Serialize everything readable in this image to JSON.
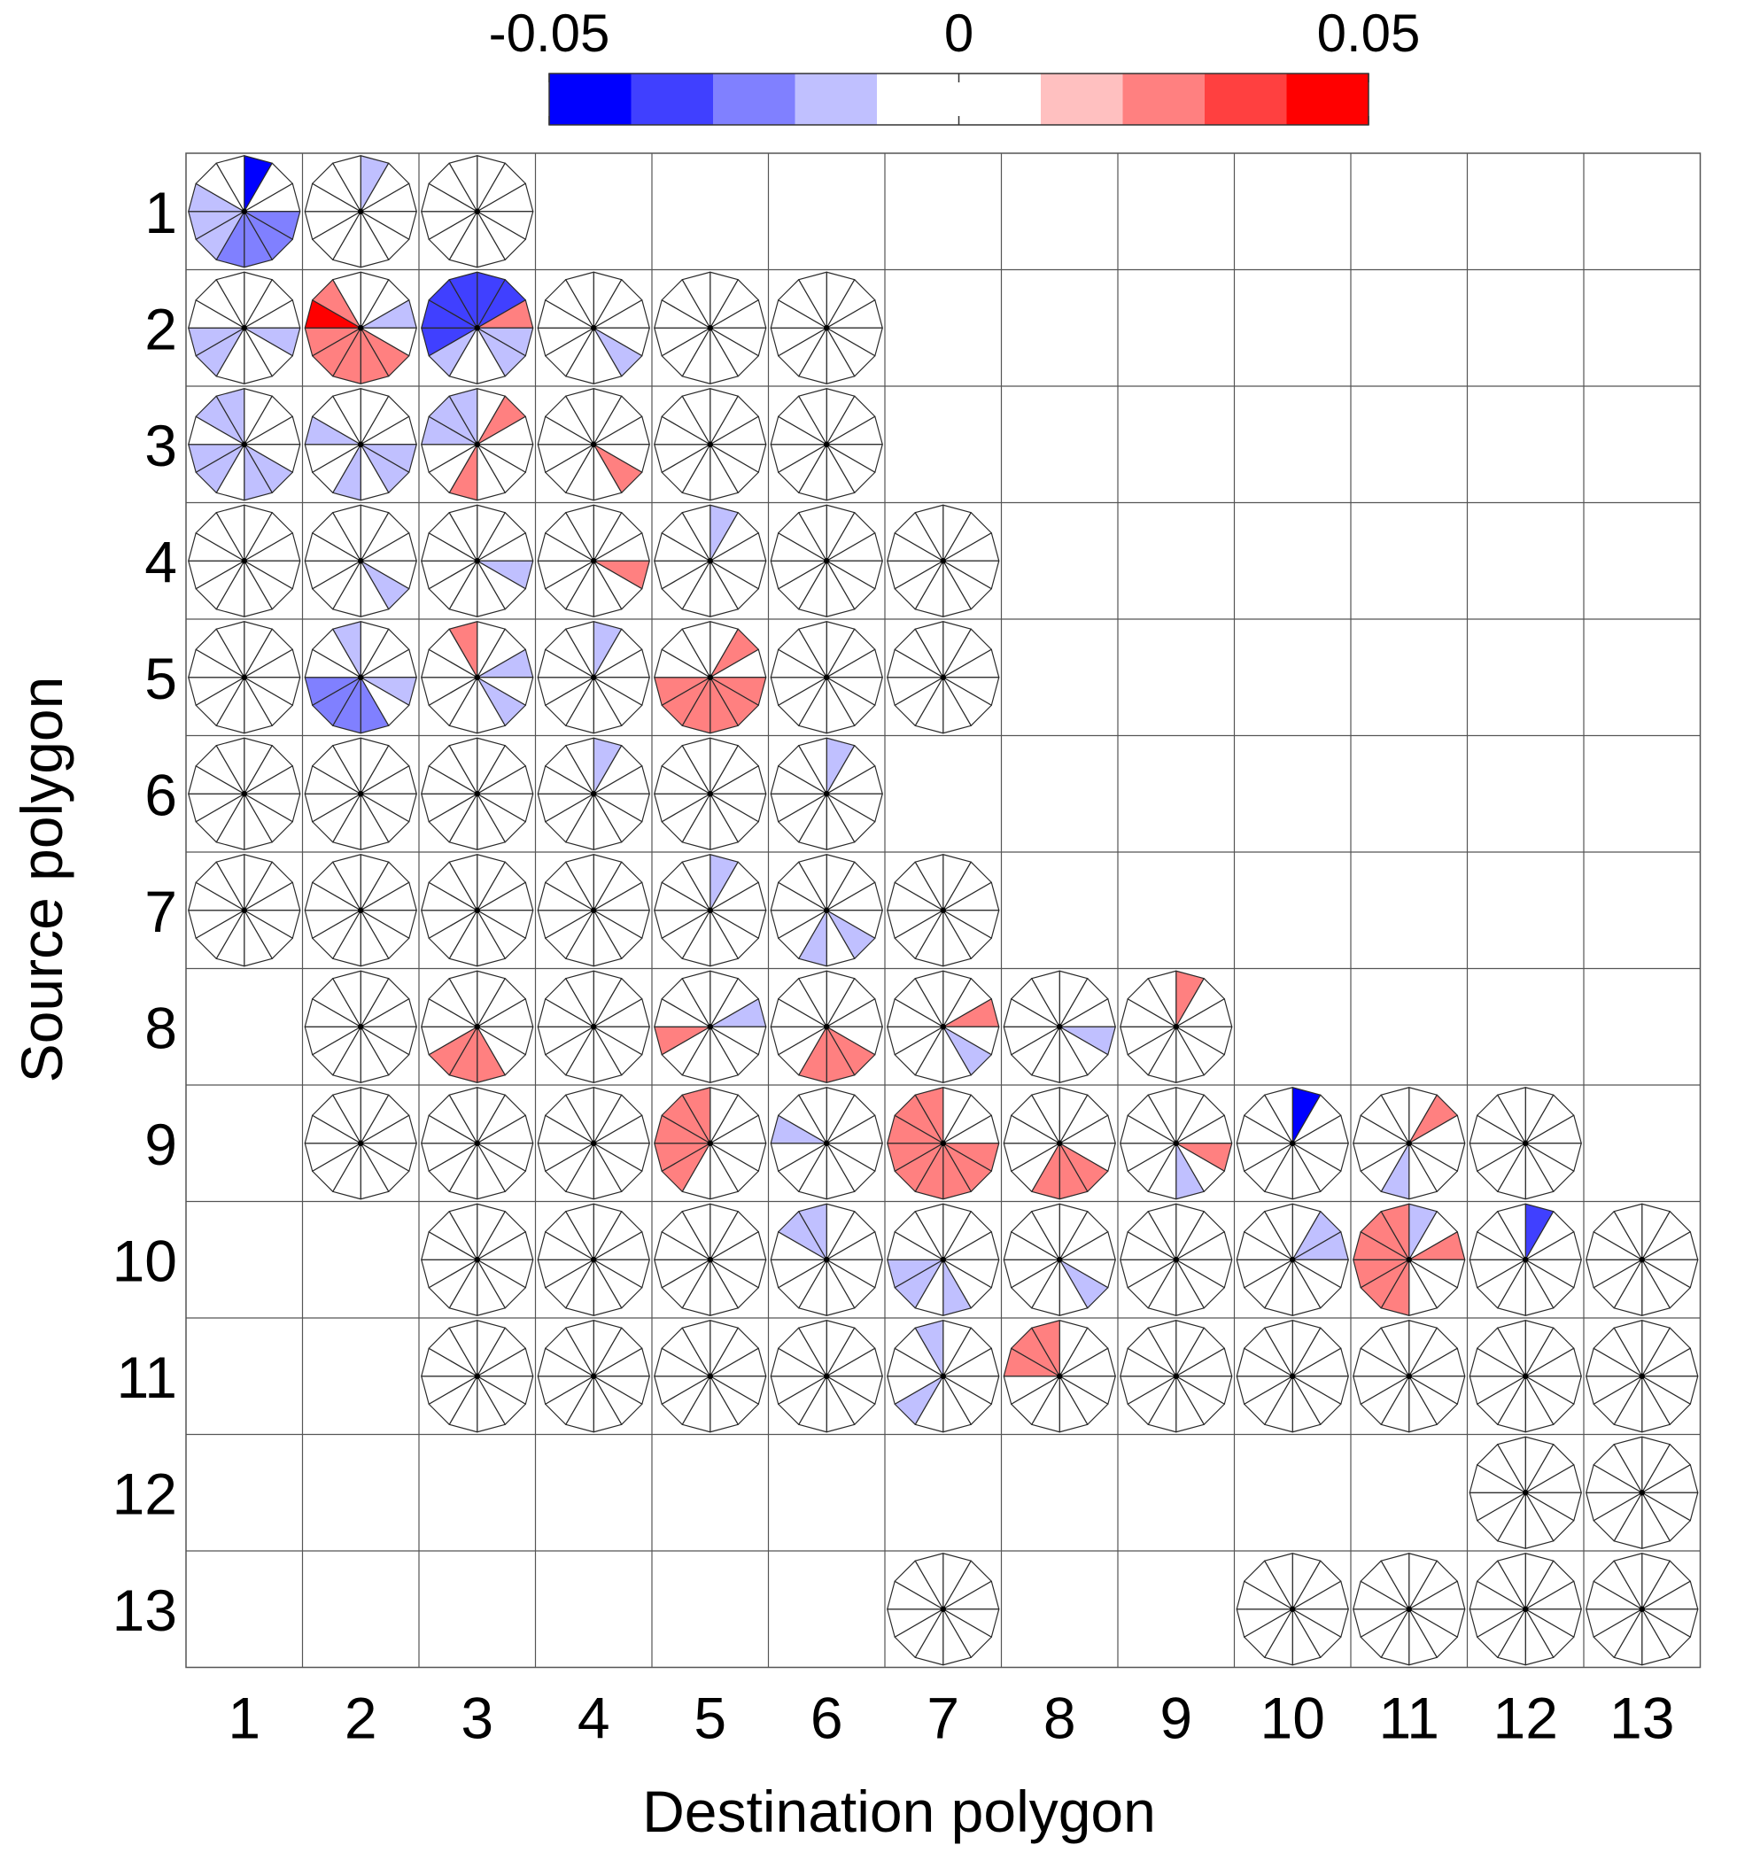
{
  "chart_data": {
    "type": "heatmap",
    "mark": "polar-wedge-glyph",
    "sectors_per_glyph": 12,
    "xlabel": "Destination polygon",
    "ylabel": "Source polygon",
    "x_categories": [
      "1",
      "2",
      "3",
      "4",
      "5",
      "6",
      "7",
      "8",
      "9",
      "10",
      "11",
      "12",
      "13"
    ],
    "y_categories": [
      "1",
      "2",
      "3",
      "4",
      "5",
      "6",
      "7",
      "8",
      "9",
      "10",
      "11",
      "12",
      "13"
    ],
    "colorbar": {
      "range": [
        -0.05,
        0.05
      ],
      "tick_labels": [
        "-0.05",
        "0",
        "0.05"
      ],
      "tick_values": [
        -0.05,
        0,
        0.05
      ],
      "colors": [
        "#0000ff",
        "#4040ff",
        "#8080ff",
        "#c0c0ff",
        "#ffffff",
        "#ffffff",
        "#ffc0c0",
        "#ff8080",
        "#ff4040",
        "#ff0000"
      ]
    },
    "cells": [
      {
        "src": 1,
        "dst": 1,
        "values": {
          "0": -0.045,
          "7": -0.02,
          "8": -0.02,
          "9": -0.02,
          "4": -0.03,
          "5": -0.03,
          "6": -0.03,
          "3": -0.03
        }
      },
      {
        "src": 1,
        "dst": 2,
        "values": {
          "0": -0.02
        }
      },
      {
        "src": 1,
        "dst": 3,
        "values": {}
      },
      {
        "src": 2,
        "dst": 1,
        "values": {
          "3": -0.02,
          "7": -0.02,
          "8": -0.02
        }
      },
      {
        "src": 2,
        "dst": 2,
        "values": {
          "8": 0.03,
          "9": 0.04,
          "10": 0.02,
          "4": 0.03,
          "5": 0.02,
          "6": 0.02,
          "7": 0.03,
          "2": -0.02
        }
      },
      {
        "src": 2,
        "dst": 3,
        "values": {
          "0": -0.04,
          "1": -0.04,
          "11": -0.04,
          "10": -0.035,
          "9": -0.035,
          "8": -0.035,
          "7": -0.02,
          "2": 0.02,
          "3": -0.02,
          "4": -0.02
        }
      },
      {
        "src": 2,
        "dst": 4,
        "values": {
          "4": -0.02
        }
      },
      {
        "src": 2,
        "dst": 5,
        "values": {}
      },
      {
        "src": 2,
        "dst": 6,
        "values": {}
      },
      {
        "src": 3,
        "dst": 1,
        "values": {
          "10": -0.02,
          "11": -0.02,
          "7": -0.02,
          "8": -0.02,
          "5": -0.02,
          "4": -0.02
        }
      },
      {
        "src": 3,
        "dst": 2,
        "values": {
          "9": -0.02,
          "3": -0.02,
          "4": -0.02,
          "6": -0.02
        }
      },
      {
        "src": 3,
        "dst": 3,
        "values": {
          "9": -0.02,
          "10": -0.02,
          "11": -0.02,
          "1": 0.02,
          "6": 0.02
        }
      },
      {
        "src": 3,
        "dst": 4,
        "values": {
          "4": 0.02
        }
      },
      {
        "src": 3,
        "dst": 5,
        "values": {}
      },
      {
        "src": 3,
        "dst": 6,
        "values": {}
      },
      {
        "src": 4,
        "dst": 1,
        "values": {}
      },
      {
        "src": 4,
        "dst": 2,
        "values": {
          "4": -0.02
        }
      },
      {
        "src": 4,
        "dst": 3,
        "values": {
          "3": -0.02
        }
      },
      {
        "src": 4,
        "dst": 4,
        "values": {
          "3": 0.02
        }
      },
      {
        "src": 4,
        "dst": 5,
        "values": {
          "0": -0.02
        }
      },
      {
        "src": 4,
        "dst": 6,
        "values": {}
      },
      {
        "src": 4,
        "dst": 7,
        "values": {}
      },
      {
        "src": 5,
        "dst": 1,
        "values": {}
      },
      {
        "src": 5,
        "dst": 2,
        "values": {
          "11": -0.02,
          "3": -0.02,
          "5": -0.025,
          "6": -0.025,
          "7": -0.025,
          "8": -0.025
        }
      },
      {
        "src": 5,
        "dst": 3,
        "values": {
          "11": 0.02,
          "2": -0.02,
          "4": -0.02
        }
      },
      {
        "src": 5,
        "dst": 4,
        "values": {
          "0": -0.02
        }
      },
      {
        "src": 5,
        "dst": 5,
        "values": {
          "1": 0.02,
          "3": 0.02,
          "4": 0.02,
          "5": 0.02,
          "6": 0.02,
          "7": 0.02,
          "8": 0.02
        }
      },
      {
        "src": 5,
        "dst": 6,
        "values": {}
      },
      {
        "src": 5,
        "dst": 7,
        "values": {}
      },
      {
        "src": 6,
        "dst": 1,
        "values": {}
      },
      {
        "src": 6,
        "dst": 2,
        "values": {}
      },
      {
        "src": 6,
        "dst": 3,
        "values": {}
      },
      {
        "src": 6,
        "dst": 4,
        "values": {
          "0": -0.02
        }
      },
      {
        "src": 6,
        "dst": 5,
        "values": {}
      },
      {
        "src": 6,
        "dst": 6,
        "values": {
          "0": -0.02
        }
      },
      {
        "src": 7,
        "dst": 1,
        "values": {}
      },
      {
        "src": 7,
        "dst": 2,
        "values": {}
      },
      {
        "src": 7,
        "dst": 3,
        "values": {}
      },
      {
        "src": 7,
        "dst": 4,
        "values": {}
      },
      {
        "src": 7,
        "dst": 5,
        "values": {
          "0": -0.02
        }
      },
      {
        "src": 7,
        "dst": 6,
        "values": {
          "4": -0.02,
          "6": -0.02
        }
      },
      {
        "src": 7,
        "dst": 7,
        "values": {}
      },
      {
        "src": 8,
        "dst": 2,
        "values": {}
      },
      {
        "src": 8,
        "dst": 3,
        "values": {
          "5": 0.02,
          "6": 0.02,
          "7": 0.02
        }
      },
      {
        "src": 8,
        "dst": 4,
        "values": {}
      },
      {
        "src": 8,
        "dst": 5,
        "values": {
          "2": -0.02,
          "8": 0.02
        }
      },
      {
        "src": 8,
        "dst": 6,
        "values": {
          "4": 0.02,
          "5": 0.02,
          "6": 0.02
        }
      },
      {
        "src": 8,
        "dst": 7,
        "values": {
          "2": 0.02,
          "4": -0.02
        }
      },
      {
        "src": 8,
        "dst": 8,
        "values": {
          "3": -0.02
        }
      },
      {
        "src": 8,
        "dst": 9,
        "values": {
          "0": 0.02
        }
      },
      {
        "src": 9,
        "dst": 2,
        "values": {}
      },
      {
        "src": 9,
        "dst": 3,
        "values": {}
      },
      {
        "src": 9,
        "dst": 4,
        "values": {}
      },
      {
        "src": 9,
        "dst": 5,
        "values": {
          "9": 0.03,
          "10": 0.03,
          "11": 0.02,
          "8": 0.02,
          "7": 0.02
        }
      },
      {
        "src": 9,
        "dst": 6,
        "values": {
          "9": -0.02
        }
      },
      {
        "src": 9,
        "dst": 7,
        "values": {
          "11": 0.02,
          "10": 0.02,
          "9": 0.02,
          "8": 0.02,
          "7": 0.02,
          "6": 0.03,
          "5": 0.02,
          "4": 0.02,
          "3": 0.02
        }
      },
      {
        "src": 9,
        "dst": 8,
        "values": {
          "4": 0.025,
          "5": 0.03,
          "6": 0.02
        }
      },
      {
        "src": 9,
        "dst": 9,
        "values": {
          "3": 0.02,
          "5": -0.02
        }
      },
      {
        "src": 9,
        "dst": 10,
        "values": {
          "0": -0.05
        }
      },
      {
        "src": 9,
        "dst": 11,
        "values": {
          "1": 0.02,
          "6": -0.02
        }
      },
      {
        "src": 9,
        "dst": 12,
        "values": {}
      },
      {
        "src": 10,
        "dst": 3,
        "values": {}
      },
      {
        "src": 10,
        "dst": 4,
        "values": {}
      },
      {
        "src": 10,
        "dst": 5,
        "values": {}
      },
      {
        "src": 10,
        "dst": 6,
        "values": {
          "10": -0.02,
          "11": -0.02
        }
      },
      {
        "src": 10,
        "dst": 7,
        "values": {
          "5": -0.02,
          "7": -0.02,
          "8": -0.02
        }
      },
      {
        "src": 10,
        "dst": 8,
        "values": {
          "4": -0.02
        }
      },
      {
        "src": 10,
        "dst": 9,
        "values": {}
      },
      {
        "src": 10,
        "dst": 10,
        "values": {
          "1": -0.02,
          "2": -0.02
        }
      },
      {
        "src": 10,
        "dst": 11,
        "values": {
          "0": -0.02,
          "11": 0.02,
          "10": 0.02,
          "9": 0.02,
          "8": 0.025,
          "7": 0.03,
          "6": 0.02,
          "2": 0.02
        }
      },
      {
        "src": 10,
        "dst": 12,
        "values": {
          "0": -0.035
        }
      },
      {
        "src": 10,
        "dst": 13,
        "values": {}
      },
      {
        "src": 11,
        "dst": 3,
        "values": {}
      },
      {
        "src": 11,
        "dst": 4,
        "values": {}
      },
      {
        "src": 11,
        "dst": 5,
        "values": {}
      },
      {
        "src": 11,
        "dst": 6,
        "values": {}
      },
      {
        "src": 11,
        "dst": 7,
        "values": {
          "11": -0.02,
          "7": -0.02
        }
      },
      {
        "src": 11,
        "dst": 8,
        "values": {
          "11": 0.02,
          "10": 0.02,
          "9": 0.02
        }
      },
      {
        "src": 11,
        "dst": 9,
        "values": {}
      },
      {
        "src": 11,
        "dst": 10,
        "values": {}
      },
      {
        "src": 11,
        "dst": 11,
        "values": {}
      },
      {
        "src": 11,
        "dst": 12,
        "values": {}
      },
      {
        "src": 11,
        "dst": 13,
        "values": {}
      },
      {
        "src": 12,
        "dst": 12,
        "values": {}
      },
      {
        "src": 12,
        "dst": 13,
        "values": {}
      },
      {
        "src": 13,
        "dst": 7,
        "values": {}
      },
      {
        "src": 13,
        "dst": 10,
        "values": {}
      },
      {
        "src": 13,
        "dst": 11,
        "values": {}
      },
      {
        "src": 13,
        "dst": 12,
        "values": {}
      },
      {
        "src": 13,
        "dst": 13,
        "values": {}
      }
    ]
  }
}
